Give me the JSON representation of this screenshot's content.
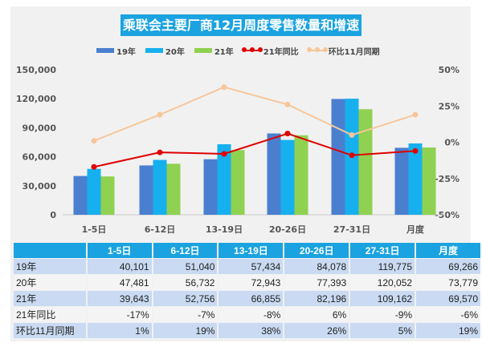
{
  "chart_data": {
    "type": "bar",
    "title": "乘联会主要厂商12月周度零售数量和增速",
    "categories": [
      "1-5日",
      "6-12日",
      "13-19日",
      "20-26日",
      "27-31日",
      "月度"
    ],
    "series": [
      {
        "name": "19年",
        "type": "bar",
        "color": "#4a7fd0",
        "values": [
          40101,
          51040,
          57434,
          84078,
          119775,
          69266
        ]
      },
      {
        "name": "20年",
        "type": "bar",
        "color": "#17b0ee",
        "values": [
          47481,
          56732,
          72943,
          77393,
          120052,
          73779
        ]
      },
      {
        "name": "21年",
        "type": "bar",
        "color": "#8fd150",
        "values": [
          39643,
          52756,
          66855,
          82196,
          109162,
          69570
        ]
      },
      {
        "name": "21年同比",
        "type": "line",
        "axis": "right",
        "color": "#e00000",
        "values": [
          -17,
          -7,
          -8,
          6,
          -9,
          -6
        ]
      },
      {
        "name": "环比11月同期",
        "type": "line",
        "axis": "right",
        "color": "#f7c69a",
        "values": [
          1,
          19,
          38,
          26,
          5,
          19
        ]
      }
    ],
    "yleft": {
      "ticks": [
        "0",
        "30,000",
        "60,000",
        "90,000",
        "120,000",
        "150,000"
      ],
      "range": [
        0,
        150000
      ]
    },
    "yright": {
      "ticks": [
        "-50%",
        "-25%",
        "0%",
        "25%",
        "50%"
      ],
      "range": [
        -50,
        50
      ]
    }
  },
  "table": {
    "header": [
      "",
      "1-5日",
      "6-12日",
      "13-19日",
      "20-26日",
      "27-31日",
      "月度"
    ],
    "rows": [
      [
        "19年",
        "40,101",
        "51,040",
        "57,434",
        "84,078",
        "119,775",
        "69,266"
      ],
      [
        "20年",
        "47,481",
        "56,732",
        "72,943",
        "77,393",
        "120,052",
        "73,779"
      ],
      [
        "21年",
        "39,643",
        "52,756",
        "66,855",
        "82,196",
        "109,162",
        "69,570"
      ],
      [
        "21年同比",
        "-17%",
        "-7%",
        "-8%",
        "6%",
        "-9%",
        "-6%"
      ],
      [
        "环比11月同期",
        "1%",
        "19%",
        "38%",
        "26%",
        "5%",
        "19%"
      ]
    ]
  }
}
